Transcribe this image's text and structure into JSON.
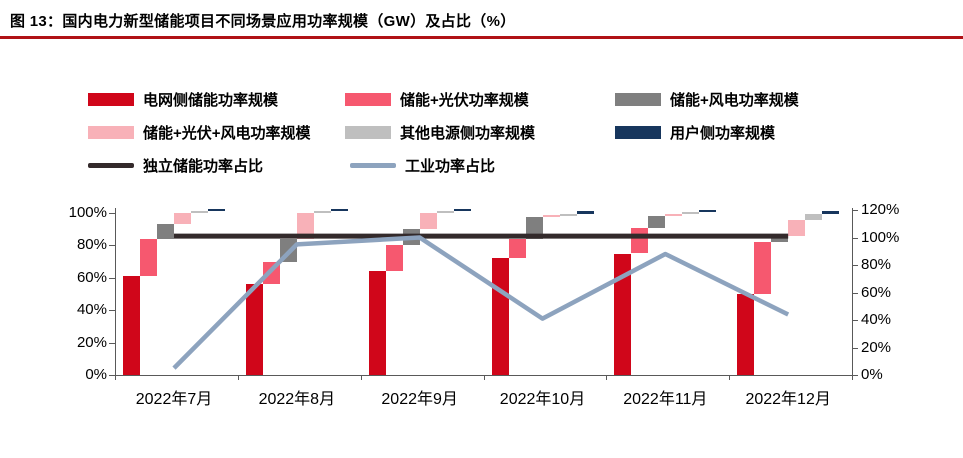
{
  "figure": {
    "title": "图 13：国内电力新型储能项目不同场景应用功率规模（GW）及占比（%）",
    "title_underline_color": "#B01116"
  },
  "legend": {
    "items": [
      {
        "label": "电网侧储能功率规模",
        "color": "#D0061A",
        "type": "bar"
      },
      {
        "label": "储能+光伏功率规模",
        "color": "#F6586F",
        "type": "bar"
      },
      {
        "label": "储能+风电功率规模",
        "color": "#7F7F7F",
        "type": "bar"
      },
      {
        "label": "储能+光伏+风电功率规模",
        "color": "#F8B1B8",
        "type": "bar"
      },
      {
        "label": "其他电源侧功率规模",
        "color": "#BFBFBF",
        "type": "bar"
      },
      {
        "label": "用户侧功率规模",
        "color": "#17365D",
        "type": "bar"
      },
      {
        "label": "独立储能功率占比",
        "color": "#332A2B",
        "type": "line"
      },
      {
        "label": "工业功率占比",
        "color": "#8DA3BE",
        "type": "line"
      }
    ]
  },
  "chart_data": {
    "type": "combo",
    "subtype": "waterfall-stacked-bars-plus-lines",
    "categories": [
      "2022年7月",
      "2022年8月",
      "2022年9月",
      "2022年10月",
      "2022年11月",
      "2022年12月"
    ],
    "bar_series": [
      {
        "name": "电网侧储能功率规模",
        "color": "#D0061A",
        "axis": "left",
        "values_pct": [
          61,
          56,
          64,
          72,
          75,
          50
        ]
      },
      {
        "name": "储能+光伏功率规模",
        "color": "#F6586F",
        "axis": "left",
        "values_pct": [
          23,
          14,
          16,
          12,
          15.5,
          32
        ]
      },
      {
        "name": "储能+风电功率规模",
        "color": "#7F7F7F",
        "axis": "left",
        "values_pct": [
          9,
          14,
          10,
          13.5,
          7.5,
          4
        ]
      },
      {
        "name": "储能+光伏+风电功率规模",
        "color": "#F8B1B8",
        "axis": "left",
        "values_pct": [
          7,
          16,
          10,
          1,
          1.5,
          9.5
        ]
      },
      {
        "name": "其他电源侧功率规模",
        "color": "#BFBFBF",
        "axis": "left",
        "values_pct": [
          1,
          1,
          1,
          1,
          1,
          4
        ]
      },
      {
        "name": "用户侧功率规模",
        "color": "#17365D",
        "axis": "left",
        "values_pct": [
          1.5,
          1.5,
          1.5,
          1.5,
          1.5,
          1.5
        ]
      }
    ],
    "line_series": [
      {
        "name": "独立储能功率占比",
        "color": "#332A2B",
        "axis": "right",
        "values_pct": [
          101,
          101,
          101,
          101,
          101,
          101
        ]
      },
      {
        "name": "工业功率占比",
        "color": "#8DA3BE",
        "axis": "right",
        "values_pct": [
          5,
          95,
          100,
          41,
          88,
          44
        ]
      }
    ],
    "left_axis": {
      "min": 0,
      "max": 100,
      "step": 20,
      "tick_labels": [
        "0%",
        "20%",
        "40%",
        "60%",
        "80%",
        "100%"
      ]
    },
    "right_axis": {
      "min": 0,
      "max": 120,
      "step": 20,
      "tick_labels": [
        "0%",
        "20%",
        "40%",
        "60%",
        "80%",
        "100%",
        "120%"
      ]
    },
    "gridlines": false,
    "legend_position": "top-left"
  }
}
